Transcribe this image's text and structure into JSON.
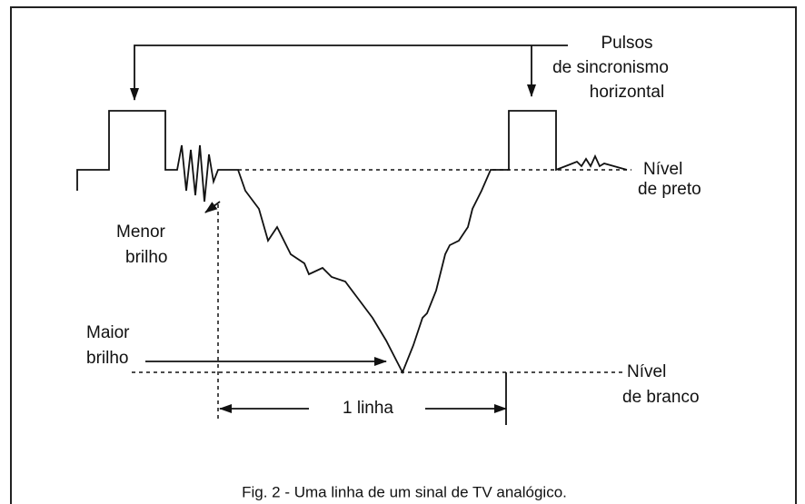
{
  "labels": {
    "sync": [
      "Pulsos",
      "de sincronismo",
      "horizontal"
    ],
    "black_level": [
      "Nível",
      "de preto"
    ],
    "less_bright": [
      "Menor",
      "brilho"
    ],
    "more_bright": [
      "Maior",
      "brilho"
    ],
    "white_level": [
      "Nível",
      "de branco"
    ],
    "line": "1 linha"
  },
  "caption": "Fig. 2 - Uma linha de um sinal de TV analógico."
}
